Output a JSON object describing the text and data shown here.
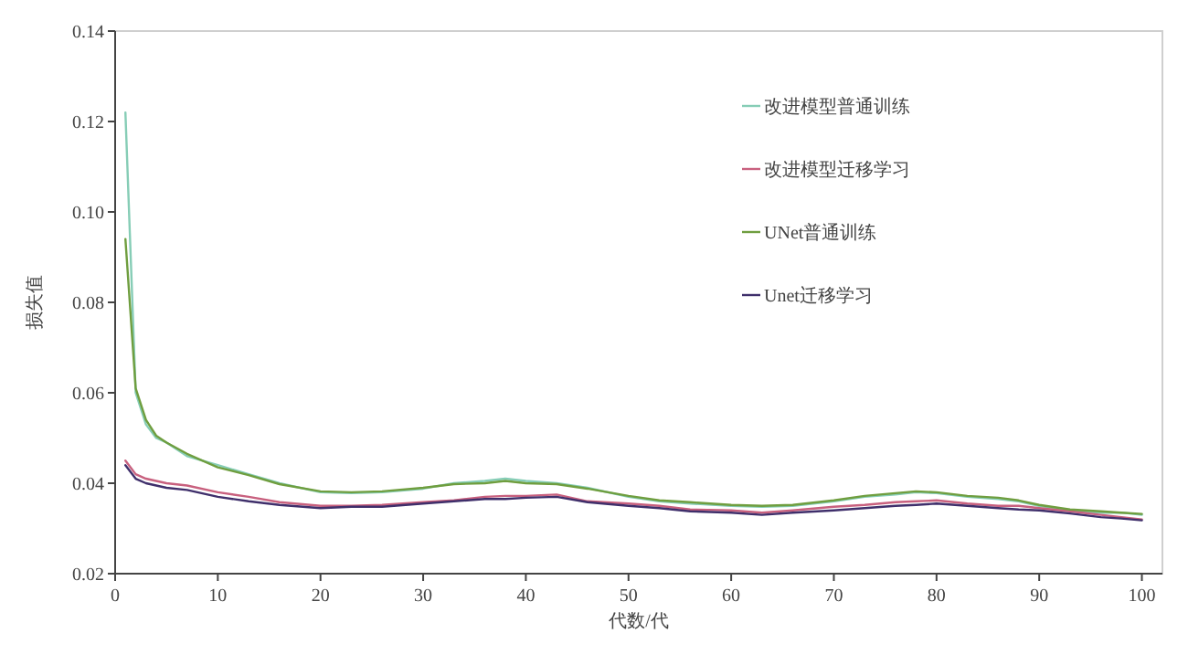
{
  "chart_data": {
    "type": "line",
    "xlabel": "代数/代",
    "ylabel": "损失值",
    "legend": "top right",
    "grid": false,
    "marker": "none",
    "line_style": "solid",
    "xlim": [
      0,
      102
    ],
    "xticks": [
      0,
      10,
      20,
      30,
      40,
      50,
      60,
      70,
      80,
      90,
      100
    ],
    "ylim": [
      0.02,
      0.14
    ],
    "yticks": [
      {
        "value": 0.02,
        "label": "0.02"
      },
      {
        "value": 0.04,
        "label": "0.04"
      },
      {
        "value": 0.06,
        "label": "0.06"
      },
      {
        "value": 0.08,
        "label": "0.08"
      },
      {
        "value": 0.1,
        "label": "0.10"
      },
      {
        "value": 0.12,
        "label": "0.12"
      },
      {
        "value": 0.14,
        "label": "0.14"
      }
    ],
    "x": [
      1,
      2,
      3,
      4,
      5,
      7,
      10,
      13,
      16,
      20,
      23,
      26,
      30,
      33,
      36,
      38,
      40,
      43,
      46,
      50,
      53,
      56,
      60,
      63,
      66,
      70,
      73,
      76,
      78,
      80,
      83,
      86,
      88,
      90,
      93,
      96,
      98,
      100
    ],
    "series": [
      {
        "name": "改进模型普通训练",
        "color": "#86cdb6",
        "values": [
          0.122,
          0.06,
          0.053,
          0.05,
          0.049,
          0.046,
          0.044,
          0.042,
          0.04,
          0.038,
          0.0378,
          0.038,
          0.0388,
          0.04,
          0.0405,
          0.041,
          0.0405,
          0.04,
          0.039,
          0.037,
          0.036,
          0.0355,
          0.035,
          0.0348,
          0.035,
          0.036,
          0.037,
          0.0375,
          0.038,
          0.0378,
          0.037,
          0.0365,
          0.036,
          0.035,
          0.034,
          0.0335,
          0.0335,
          0.033
        ]
      },
      {
        "name": "改进模型迁移学习",
        "color": "#c8607e",
        "values": [
          0.045,
          0.042,
          0.041,
          0.0405,
          0.04,
          0.0395,
          0.038,
          0.037,
          0.0358,
          0.035,
          0.035,
          0.0352,
          0.0358,
          0.0362,
          0.037,
          0.0372,
          0.0372,
          0.0375,
          0.036,
          0.0355,
          0.035,
          0.0342,
          0.034,
          0.0335,
          0.034,
          0.0348,
          0.0352,
          0.0358,
          0.036,
          0.0362,
          0.0355,
          0.035,
          0.035,
          0.0345,
          0.0338,
          0.033,
          0.0325,
          0.032
        ]
      },
      {
        "name": "UNet普通训练",
        "color": "#6f9e3f",
        "values": [
          0.094,
          0.061,
          0.054,
          0.0505,
          0.049,
          0.0465,
          0.0435,
          0.0418,
          0.0398,
          0.0382,
          0.038,
          0.0382,
          0.039,
          0.0398,
          0.04,
          0.0405,
          0.04,
          0.0398,
          0.0388,
          0.0372,
          0.0362,
          0.0358,
          0.0352,
          0.035,
          0.0352,
          0.0362,
          0.0372,
          0.0378,
          0.0382,
          0.038,
          0.0372,
          0.0368,
          0.0362,
          0.0352,
          0.0342,
          0.0338,
          0.0335,
          0.0332
        ]
      },
      {
        "name": "Unet迁移学习",
        "color": "#3f2f6b",
        "values": [
          0.044,
          0.041,
          0.04,
          0.0395,
          0.039,
          0.0385,
          0.037,
          0.036,
          0.0352,
          0.0345,
          0.0348,
          0.0348,
          0.0355,
          0.036,
          0.0365,
          0.0365,
          0.0368,
          0.037,
          0.0358,
          0.035,
          0.0345,
          0.0338,
          0.0335,
          0.033,
          0.0335,
          0.034,
          0.0345,
          0.035,
          0.0352,
          0.0355,
          0.035,
          0.0345,
          0.0342,
          0.034,
          0.0333,
          0.0325,
          0.0322,
          0.0318
        ]
      }
    ]
  }
}
